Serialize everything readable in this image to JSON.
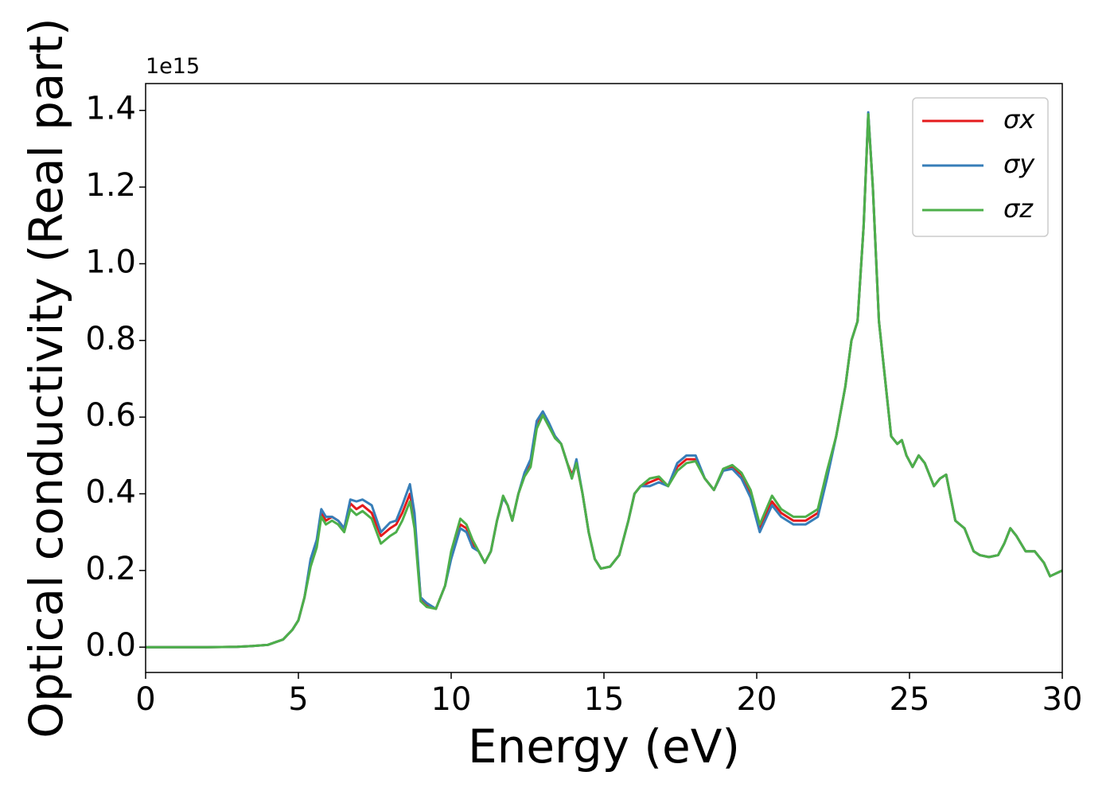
{
  "chart_data": {
    "type": "line",
    "xlabel": "Energy (eV)",
    "ylabel": "Optical conductivity (Real part)",
    "y_offset_label": "1e15",
    "x": [
      0,
      1,
      2,
      3,
      3.5,
      4,
      4.5,
      4.8,
      5,
      5.2,
      5.4,
      5.6,
      5.75,
      5.9,
      6.1,
      6.3,
      6.5,
      6.7,
      6.9,
      7.1,
      7.4,
      7.7,
      8,
      8.2,
      8.4,
      8.65,
      8.8,
      9,
      9.2,
      9.5,
      9.8,
      10,
      10.3,
      10.5,
      10.7,
      10.9,
      11.1,
      11.3,
      11.5,
      11.7,
      11.85,
      12,
      12.2,
      12.4,
      12.6,
      12.8,
      13,
      13.2,
      13.4,
      13.6,
      13.8,
      13.95,
      14.1,
      14.3,
      14.5,
      14.7,
      14.9,
      15.2,
      15.5,
      15.8,
      16,
      16.2,
      16.5,
      16.8,
      17.1,
      17.4,
      17.7,
      18,
      18.3,
      18.6,
      18.9,
      19.2,
      19.5,
      19.8,
      20.1,
      20.5,
      20.8,
      21.2,
      21.6,
      22,
      22.3,
      22.6,
      22.9,
      23.1,
      23.3,
      23.5,
      23.65,
      23.8,
      24,
      24.2,
      24.4,
      24.6,
      24.75,
      24.9,
      25.1,
      25.3,
      25.5,
      25.8,
      26,
      26.2,
      26.5,
      26.8,
      27.1,
      27.3,
      27.6,
      27.9,
      28.1,
      28.3,
      28.5,
      28.8,
      29.1,
      29.4,
      29.6,
      30
    ],
    "series": [
      {
        "name": "σx",
        "color": "#e41a1c",
        "values": [
          0,
          0,
          0,
          0.001,
          0.003,
          0.006,
          0.02,
          0.045,
          0.07,
          0.13,
          0.22,
          0.27,
          0.35,
          0.33,
          0.34,
          0.33,
          0.31,
          0.375,
          0.36,
          0.37,
          0.35,
          0.29,
          0.31,
          0.32,
          0.35,
          0.4,
          0.33,
          0.13,
          0.11,
          0.1,
          0.16,
          0.24,
          0.32,
          0.31,
          0.27,
          0.25,
          0.22,
          0.25,
          0.33,
          0.39,
          0.37,
          0.33,
          0.4,
          0.45,
          0.48,
          0.58,
          0.61,
          0.58,
          0.55,
          0.53,
          0.48,
          0.45,
          0.48,
          0.4,
          0.3,
          0.23,
          0.205,
          0.21,
          0.24,
          0.33,
          0.4,
          0.42,
          0.43,
          0.44,
          0.42,
          0.47,
          0.49,
          0.49,
          0.44,
          0.41,
          0.46,
          0.47,
          0.45,
          0.4,
          0.31,
          0.38,
          0.35,
          0.33,
          0.33,
          0.35,
          0.45,
          0.55,
          0.68,
          0.8,
          0.85,
          1.1,
          1.39,
          1.2,
          0.85,
          0.7,
          0.55,
          0.53,
          0.54,
          0.5,
          0.47,
          0.5,
          0.48,
          0.42,
          0.44,
          0.45,
          0.33,
          0.31,
          0.25,
          0.24,
          0.235,
          0.24,
          0.27,
          0.31,
          0.29,
          0.25,
          0.25,
          0.22,
          0.185,
          0.2
        ]
      },
      {
        "name": "σy",
        "color": "#377eb8",
        "values": [
          0,
          0,
          0,
          0.001,
          0.003,
          0.006,
          0.02,
          0.045,
          0.07,
          0.13,
          0.23,
          0.28,
          0.36,
          0.34,
          0.34,
          0.33,
          0.31,
          0.385,
          0.38,
          0.385,
          0.37,
          0.3,
          0.325,
          0.33,
          0.37,
          0.425,
          0.35,
          0.13,
          0.115,
          0.1,
          0.16,
          0.23,
          0.31,
          0.3,
          0.26,
          0.25,
          0.22,
          0.25,
          0.33,
          0.39,
          0.37,
          0.33,
          0.4,
          0.455,
          0.49,
          0.59,
          0.615,
          0.585,
          0.55,
          0.53,
          0.48,
          0.44,
          0.49,
          0.4,
          0.3,
          0.23,
          0.205,
          0.21,
          0.24,
          0.33,
          0.4,
          0.42,
          0.42,
          0.43,
          0.42,
          0.48,
          0.5,
          0.5,
          0.44,
          0.41,
          0.46,
          0.465,
          0.44,
          0.39,
          0.3,
          0.37,
          0.34,
          0.32,
          0.32,
          0.34,
          0.44,
          0.55,
          0.68,
          0.8,
          0.85,
          1.1,
          1.395,
          1.2,
          0.85,
          0.7,
          0.55,
          0.53,
          0.54,
          0.5,
          0.47,
          0.5,
          0.48,
          0.42,
          0.44,
          0.45,
          0.33,
          0.31,
          0.25,
          0.24,
          0.235,
          0.24,
          0.27,
          0.31,
          0.29,
          0.25,
          0.25,
          0.22,
          0.185,
          0.2
        ]
      },
      {
        "name": "σz",
        "color": "#4daf4a",
        "values": [
          0,
          0,
          0,
          0.001,
          0.003,
          0.006,
          0.02,
          0.045,
          0.07,
          0.13,
          0.21,
          0.26,
          0.34,
          0.32,
          0.33,
          0.32,
          0.3,
          0.36,
          0.345,
          0.355,
          0.335,
          0.27,
          0.29,
          0.3,
          0.33,
          0.38,
          0.31,
          0.12,
          0.105,
          0.1,
          0.16,
          0.25,
          0.335,
          0.32,
          0.28,
          0.25,
          0.22,
          0.25,
          0.33,
          0.395,
          0.37,
          0.33,
          0.4,
          0.445,
          0.47,
          0.57,
          0.605,
          0.575,
          0.545,
          0.53,
          0.48,
          0.44,
          0.48,
          0.4,
          0.3,
          0.23,
          0.205,
          0.21,
          0.24,
          0.33,
          0.4,
          0.42,
          0.44,
          0.445,
          0.42,
          0.46,
          0.48,
          0.485,
          0.44,
          0.41,
          0.465,
          0.475,
          0.455,
          0.41,
          0.32,
          0.395,
          0.36,
          0.34,
          0.34,
          0.36,
          0.46,
          0.55,
          0.68,
          0.8,
          0.85,
          1.1,
          1.39,
          1.2,
          0.85,
          0.7,
          0.55,
          0.53,
          0.54,
          0.5,
          0.47,
          0.5,
          0.48,
          0.42,
          0.44,
          0.45,
          0.33,
          0.31,
          0.25,
          0.24,
          0.235,
          0.24,
          0.27,
          0.31,
          0.29,
          0.25,
          0.25,
          0.22,
          0.185,
          0.2
        ]
      }
    ],
    "xlim": [
      0,
      30
    ],
    "xticks": [
      0,
      5,
      10,
      15,
      20,
      25,
      30
    ],
    "ylim": [
      -0.066,
      1.47
    ],
    "yticks": [
      {
        "value": 0,
        "label": "0.0"
      },
      {
        "value": 0.2,
        "label": "0.2"
      },
      {
        "value": 0.4,
        "label": "0.4"
      },
      {
        "value": 0.6,
        "label": "0.6"
      },
      {
        "value": 0.8,
        "label": "0.8"
      },
      {
        "value": 1.0,
        "label": "1.0"
      },
      {
        "value": 1.2,
        "label": "1.2"
      },
      {
        "value": 1.4,
        "label": "1.4"
      }
    ],
    "grid": false,
    "legend": "upper right"
  }
}
